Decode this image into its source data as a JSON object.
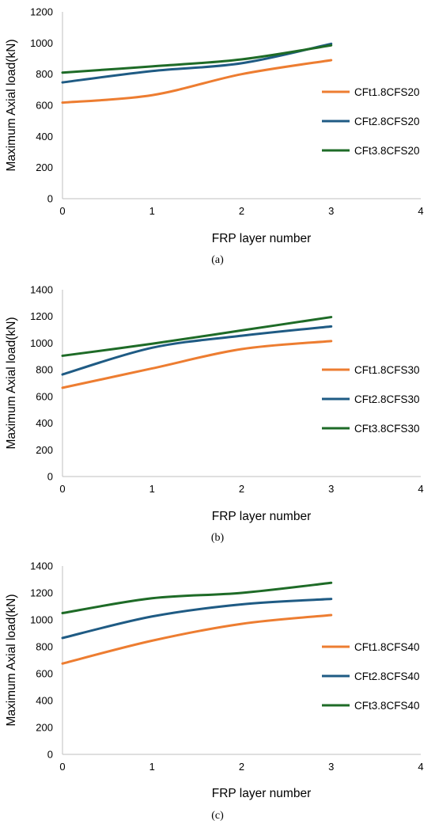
{
  "colors": {
    "orange": "#ED7D31",
    "blue": "#1F5B84",
    "green": "#1E6B27",
    "axis": "#BFBFBF"
  },
  "chart_data": [
    {
      "type": "line",
      "caption": "(a)",
      "xlabel": "FRP layer number",
      "ylabel": "Maximum Axial load(kN)",
      "xlim": [
        0,
        4
      ],
      "ylim": [
        0,
        1200
      ],
      "xticks": [
        "0",
        "1",
        "2",
        "3",
        "4"
      ],
      "yticks": [
        "0",
        "200",
        "400",
        "600",
        "800",
        "1000",
        "1200"
      ],
      "x": [
        0,
        1,
        2,
        3
      ],
      "legend_position": "right",
      "series": [
        {
          "name": "CFt1.8CFS20",
          "color": "#ED7D31",
          "values": [
            617,
            665,
            800,
            890
          ]
        },
        {
          "name": "CFt2.8CFS20",
          "color": "#1F5B84",
          "values": [
            747,
            820,
            870,
            995
          ]
        },
        {
          "name": "CFt3.8CFS20",
          "color": "#1E6B27",
          "values": [
            810,
            850,
            895,
            985
          ]
        }
      ]
    },
    {
      "type": "line",
      "caption": "(b)",
      "xlabel": "FRP layer number",
      "ylabel": "Maximum Axial load(kN)",
      "xlim": [
        0,
        4
      ],
      "ylim": [
        0,
        1400
      ],
      "xticks": [
        "0",
        "1",
        "2",
        "3",
        "4"
      ],
      "yticks": [
        "0",
        "200",
        "400",
        "600",
        "800",
        "1000",
        "1200",
        "1400"
      ],
      "x": [
        0,
        1,
        2,
        3
      ],
      "legend_position": "right",
      "series": [
        {
          "name": "CFt1.8CFS30",
          "color": "#ED7D31",
          "values": [
            665,
            810,
            955,
            1015
          ]
        },
        {
          "name": "CFt2.8CFS30",
          "color": "#1F5B84",
          "values": [
            765,
            965,
            1055,
            1125
          ]
        },
        {
          "name": "CFt3.8CFS30",
          "color": "#1E6B27",
          "values": [
            905,
            995,
            1095,
            1195
          ]
        }
      ]
    },
    {
      "type": "line",
      "caption": "(c)",
      "xlabel": "FRP layer number",
      "ylabel": "Maximum Axial load(kN)",
      "xlim": [
        0,
        4
      ],
      "ylim": [
        0,
        1400
      ],
      "xticks": [
        "0",
        "1",
        "2",
        "3",
        "4"
      ],
      "yticks": [
        "0",
        "200",
        "400",
        "600",
        "800",
        "1000",
        "1200",
        "1400"
      ],
      "x": [
        0,
        1,
        2,
        3
      ],
      "legend_position": "right",
      "series": [
        {
          "name": "CFt1.8CFS40",
          "color": "#ED7D31",
          "values": [
            675,
            845,
            970,
            1035
          ]
        },
        {
          "name": "CFt2.8CFS40",
          "color": "#1F5B84",
          "values": [
            865,
            1025,
            1115,
            1155
          ]
        },
        {
          "name": "CFt3.8CFS40",
          "color": "#1E6B27",
          "values": [
            1050,
            1160,
            1200,
            1275
          ]
        }
      ]
    }
  ]
}
